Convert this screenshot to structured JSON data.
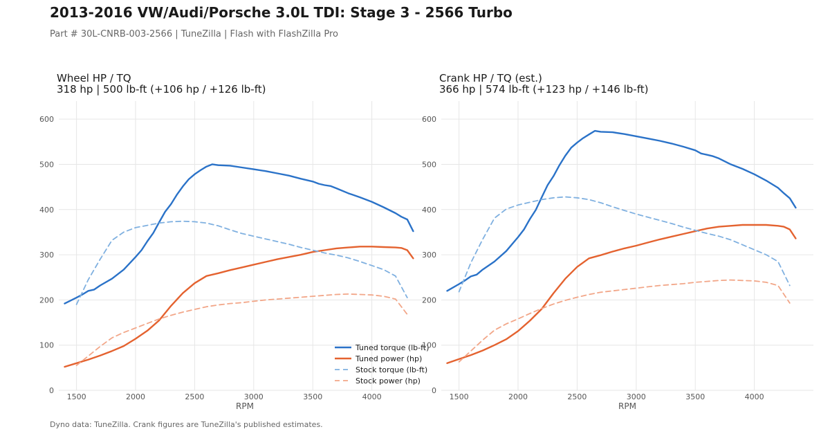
{
  "header": {
    "title": "2013-2016 VW/Audi/Porsche 3.0L TDI: Stage 3 - 2566 Turbo",
    "subtitle": "Part # 30L-CNRB-003-2566  |  TuneZilla  |  Flash with FlashZilla Pro"
  },
  "footer": {
    "text": "Dyno data: TuneZilla. Crank figures are TuneZilla's published estimates."
  },
  "colors": {
    "tuned_torque": "#2a72c8",
    "tuned_power": "#e4622f",
    "stock_torque": "#7fb0e0",
    "stock_power": "#f2a688",
    "grid": "#e6e6e6"
  },
  "chart_data": [
    {
      "type": "line",
      "title": "Wheel HP / TQ",
      "subtitle": "318 hp  |  500 lb-ft   (+106 hp / +126 lb-ft)",
      "xlabel": "RPM",
      "ylabel": "",
      "xlim": [
        1350,
        4500
      ],
      "ylim": [
        0,
        640
      ],
      "xticks": [
        1500,
        2000,
        2500,
        3000,
        3500,
        4000
      ],
      "yticks": [
        0,
        100,
        200,
        300,
        400,
        500,
        600
      ],
      "grid": true,
      "legend": "bottom-right",
      "series": [
        {
          "name": "Tuned torque (lb-ft)",
          "style": "solid",
          "color_key": "tuned_torque",
          "x": [
            1400,
            1500,
            1550,
            1600,
            1650,
            1700,
            1800,
            1900,
            2000,
            2050,
            2100,
            2150,
            2200,
            2250,
            2300,
            2350,
            2400,
            2450,
            2500,
            2550,
            2600,
            2650,
            2700,
            2800,
            2900,
            3000,
            3100,
            3200,
            3300,
            3400,
            3500,
            3550,
            3600,
            3650,
            3700,
            3800,
            3900,
            4000,
            4100,
            4200,
            4250,
            4300,
            4350
          ],
          "y": [
            192,
            205,
            212,
            220,
            223,
            232,
            247,
            267,
            295,
            310,
            330,
            348,
            372,
            395,
            412,
            433,
            451,
            467,
            478,
            487,
            495,
            500,
            498,
            497,
            493,
            489,
            485,
            480,
            475,
            468,
            462,
            457,
            454,
            452,
            447,
            436,
            427,
            417,
            405,
            392,
            384,
            378,
            352
          ]
        },
        {
          "name": "Tuned power (hp)",
          "style": "solid",
          "color_key": "tuned_power",
          "x": [
            1400,
            1500,
            1600,
            1700,
            1800,
            1900,
            2000,
            2100,
            2200,
            2300,
            2400,
            2500,
            2600,
            2700,
            2800,
            2900,
            3000,
            3100,
            3200,
            3300,
            3400,
            3500,
            3600,
            3700,
            3800,
            3900,
            4000,
            4100,
            4200,
            4250,
            4300,
            4350
          ],
          "y": [
            52,
            60,
            68,
            77,
            87,
            98,
            114,
            132,
            155,
            187,
            215,
            237,
            253,
            259,
            266,
            272,
            278,
            284,
            290,
            295,
            300,
            306,
            310,
            314,
            316,
            318,
            318,
            317,
            316,
            315,
            310,
            292
          ]
        },
        {
          "name": "Stock torque (lb-ft)",
          "style": "dashed",
          "color_key": "stock_torque",
          "x": [
            1500,
            1600,
            1700,
            1800,
            1900,
            2000,
            2100,
            2200,
            2300,
            2400,
            2500,
            2600,
            2700,
            2800,
            2900,
            3000,
            3100,
            3200,
            3300,
            3400,
            3500,
            3600,
            3700,
            3800,
            3900,
            4000,
            4100,
            4200,
            4300
          ],
          "y": [
            190,
            245,
            290,
            332,
            350,
            360,
            365,
            370,
            373,
            374,
            373,
            370,
            364,
            355,
            347,
            341,
            335,
            329,
            323,
            316,
            310,
            304,
            299,
            293,
            285,
            276,
            267,
            253,
            205
          ]
        },
        {
          "name": "Stock power (hp)",
          "style": "dashed",
          "color_key": "stock_power",
          "x": [
            1500,
            1600,
            1700,
            1800,
            1900,
            2000,
            2100,
            2200,
            2300,
            2400,
            2500,
            2600,
            2700,
            2800,
            2900,
            3000,
            3100,
            3200,
            3300,
            3400,
            3500,
            3600,
            3700,
            3800,
            3900,
            4000,
            4100,
            4200,
            4300
          ],
          "y": [
            55,
            76,
            97,
            116,
            128,
            138,
            148,
            158,
            166,
            173,
            179,
            185,
            189,
            192,
            194,
            197,
            200,
            202,
            204,
            206,
            208,
            210,
            212,
            213,
            212,
            211,
            208,
            202,
            168
          ]
        }
      ]
    },
    {
      "type": "line",
      "title": "Crank HP / TQ (est.)",
      "subtitle": "366 hp  |  574 lb-ft   (+123 hp / +146 lb-ft)",
      "xlabel": "RPM",
      "ylabel": "",
      "xlim": [
        1350,
        4500
      ],
      "ylim": [
        0,
        640
      ],
      "xticks": [
        1500,
        2000,
        2500,
        3000,
        3500,
        4000
      ],
      "yticks": [
        0,
        100,
        200,
        300,
        400,
        500,
        600
      ],
      "grid": true,
      "series": [
        {
          "name": "Tuned torque (lb-ft)",
          "style": "solid",
          "color_key": "tuned_torque",
          "x": [
            1400,
            1500,
            1550,
            1600,
            1650,
            1700,
            1800,
            1900,
            2000,
            2050,
            2100,
            2150,
            2200,
            2250,
            2300,
            2350,
            2400,
            2450,
            2500,
            2550,
            2600,
            2650,
            2700,
            2800,
            2900,
            3000,
            3100,
            3200,
            3300,
            3400,
            3500,
            3550,
            3600,
            3650,
            3700,
            3800,
            3900,
            4000,
            4100,
            4200,
            4250,
            4300,
            4350
          ],
          "y": [
            220,
            235,
            243,
            252,
            256,
            267,
            285,
            308,
            339,
            356,
            379,
            399,
            427,
            454,
            474,
            498,
            519,
            537,
            548,
            558,
            566,
            574,
            572,
            571,
            567,
            562,
            557,
            552,
            546,
            539,
            531,
            524,
            521,
            518,
            513,
            500,
            490,
            478,
            464,
            448,
            436,
            425,
            404
          ]
        },
        {
          "name": "Tuned power (hp)",
          "style": "solid",
          "color_key": "tuned_power",
          "x": [
            1400,
            1500,
            1600,
            1700,
            1800,
            1900,
            2000,
            2100,
            2200,
            2300,
            2400,
            2500,
            2600,
            2700,
            2800,
            2900,
            3000,
            3100,
            3200,
            3300,
            3400,
            3500,
            3600,
            3700,
            3800,
            3900,
            4000,
            4100,
            4200,
            4250,
            4300,
            4350
          ],
          "y": [
            60,
            69,
            78,
            88,
            100,
            113,
            131,
            154,
            180,
            215,
            247,
            273,
            292,
            299,
            307,
            314,
            320,
            327,
            334,
            340,
            346,
            352,
            358,
            362,
            364,
            366,
            366,
            366,
            364,
            362,
            356,
            336
          ]
        },
        {
          "name": "Stock torque (lb-ft)",
          "style": "dashed",
          "color_key": "stock_torque",
          "x": [
            1500,
            1600,
            1700,
            1800,
            1900,
            2000,
            2100,
            2200,
            2300,
            2400,
            2500,
            2600,
            2700,
            2800,
            2900,
            3000,
            3100,
            3200,
            3300,
            3400,
            3500,
            3600,
            3700,
            3800,
            3900,
            4000,
            4100,
            4200,
            4300
          ],
          "y": [
            218,
            282,
            334,
            381,
            401,
            410,
            416,
            422,
            426,
            428,
            426,
            422,
            415,
            406,
            398,
            390,
            383,
            376,
            369,
            361,
            354,
            347,
            341,
            333,
            322,
            311,
            300,
            285,
            232
          ]
        },
        {
          "name": "Stock power (hp)",
          "style": "dashed",
          "color_key": "stock_power",
          "x": [
            1500,
            1600,
            1700,
            1800,
            1900,
            2000,
            2100,
            2200,
            2300,
            2400,
            2500,
            2600,
            2700,
            2800,
            2900,
            3000,
            3100,
            3200,
            3300,
            3400,
            3500,
            3600,
            3700,
            3800,
            3900,
            4000,
            4100,
            4200,
            4300
          ],
          "y": [
            63,
            87,
            111,
            133,
            147,
            158,
            170,
            181,
            191,
            199,
            206,
            212,
            217,
            220,
            223,
            226,
            229,
            232,
            234,
            236,
            239,
            241,
            243,
            244,
            243,
            242,
            239,
            232,
            193
          ]
        }
      ]
    }
  ]
}
